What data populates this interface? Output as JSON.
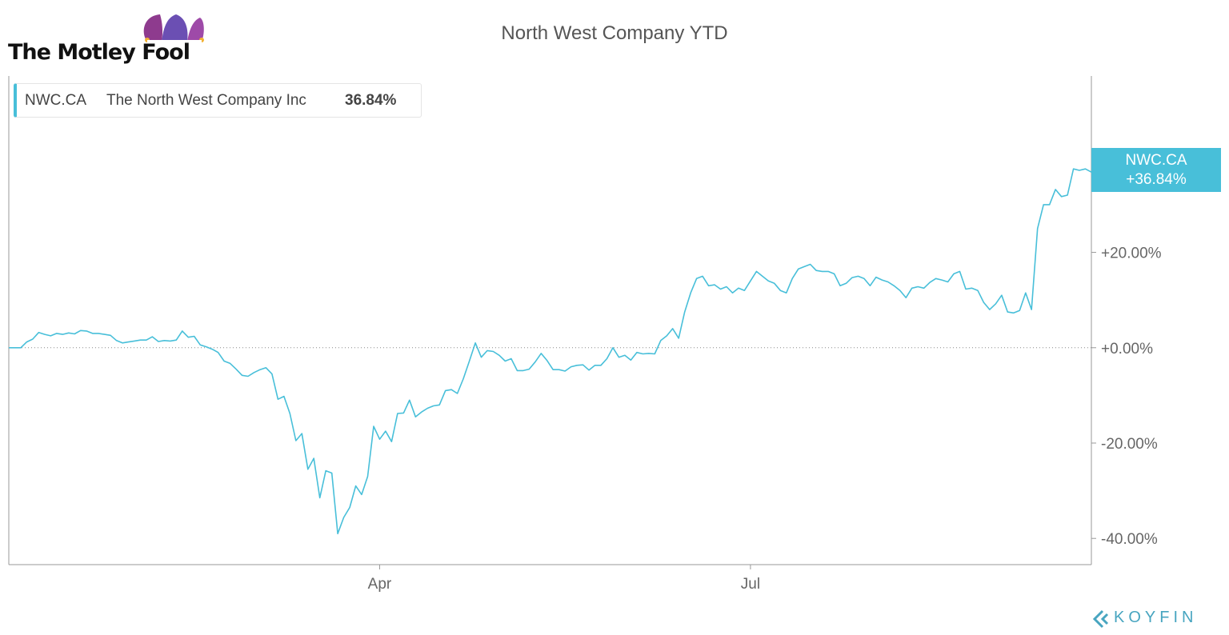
{
  "logo": {
    "text": "The Motley Fool",
    "icon": "jester-hat-icon"
  },
  "watermark": {
    "text": "KOYFIN",
    "icon": "koyfin-chevron-icon"
  },
  "colors": {
    "line": "#48bfd9",
    "axis": "#888888",
    "text": "#555555"
  },
  "chart_data": {
    "type": "line",
    "title": "North West Company YTD",
    "legend": {
      "ticker": "NWC.CA",
      "name": "The North West Company Inc",
      "value": "36.84%"
    },
    "end_label": {
      "ticker": "NWC.CA",
      "value": "+36.84%"
    },
    "xlabel": "",
    "ylabel": "",
    "x_ticks": [
      {
        "label": "Apr",
        "index": 62
      },
      {
        "label": "Jul",
        "index": 124
      }
    ],
    "y_ticks": [
      {
        "label": "+20.00%",
        "value": 20
      },
      {
        "label": "+0.00%",
        "value": 0
      },
      {
        "label": "-20.00%",
        "value": -20
      },
      {
        "label": "-40.00%",
        "value": -40
      }
    ],
    "ylim": [
      -45.5,
      57
    ],
    "grid": false,
    "baseline": 0,
    "series": [
      {
        "values": [
          0.0,
          0.0,
          0.0,
          1.2,
          1.8,
          3.2,
          2.8,
          2.5,
          3.0,
          2.8,
          3.1,
          2.9,
          3.6,
          3.5,
          3.0,
          3.0,
          2.8,
          2.6,
          1.5,
          1.0,
          1.2,
          1.4,
          1.6,
          1.6,
          2.3,
          1.3,
          1.5,
          1.4,
          1.6,
          3.5,
          2.2,
          2.4,
          0.6,
          0.2,
          -0.3,
          -1.0,
          -2.8,
          -3.3,
          -4.5,
          -5.8,
          -6.0,
          -5.2,
          -4.6,
          -4.2,
          -5.5,
          -10.8,
          -10.2,
          -13.8,
          -19.5,
          -18.0,
          -25.5,
          -23.2,
          -31.5,
          -25.8,
          -26.3,
          -39.0,
          -35.6,
          -33.5,
          -29.0,
          -30.8,
          -27.0,
          -16.5,
          -19.2,
          -17.5,
          -19.7,
          -13.8,
          -13.7,
          -11.0,
          -14.5,
          -13.5,
          -12.7,
          -12.2,
          -12.0,
          -9.0,
          -8.8,
          -9.6,
          -6.5,
          -2.8,
          1.0,
          -2.0,
          -0.6,
          -0.8,
          -1.6,
          -2.8,
          -2.3,
          -4.8,
          -4.8,
          -4.5,
          -3.0,
          -1.2,
          -2.7,
          -4.6,
          -4.6,
          -4.9,
          -4.0,
          -3.7,
          -3.6,
          -4.7,
          -3.7,
          -3.7,
          -2.3,
          0.0,
          -2.0,
          -1.6,
          -2.6,
          -1.0,
          -1.3,
          -1.2,
          -1.3,
          1.5,
          2.5,
          4.0,
          2.0,
          7.5,
          11.5,
          14.5,
          15.0,
          13.0,
          13.2,
          12.3,
          12.8,
          11.5,
          12.5,
          12.0,
          14.0,
          16.0,
          15.0,
          14.0,
          13.5,
          12.0,
          11.5,
          14.5,
          16.5,
          17.0,
          17.5,
          16.2,
          16.0,
          16.0,
          15.5,
          13.0,
          13.5,
          14.7,
          15.0,
          14.5,
          13.0,
          14.8,
          14.2,
          13.8,
          13.0,
          12.0,
          10.5,
          12.5,
          12.8,
          12.5,
          13.7,
          14.5,
          14.2,
          13.8,
          15.5,
          16.0,
          12.3,
          12.5,
          12.0,
          9.5,
          8.0,
          9.2,
          11.0,
          7.5,
          7.3,
          7.8,
          11.5,
          8.0,
          25.0,
          30.0,
          30.0,
          33.2,
          31.7,
          32.0,
          37.5,
          37.2,
          37.5,
          36.84
        ]
      }
    ]
  }
}
